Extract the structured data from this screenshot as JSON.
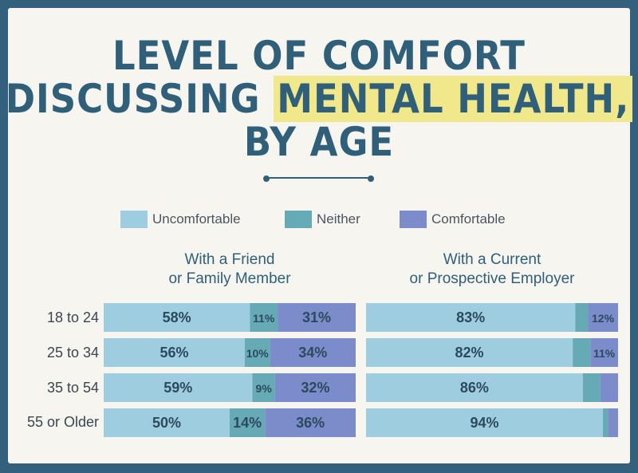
{
  "title": {
    "line1": "LEVEL OF COMFORT",
    "line2_pre": "DISCUSSING ",
    "line2_highlight": "MENTAL HEALTH,",
    "line3": "BY AGE"
  },
  "colors": {
    "background": "#33617d",
    "card": "#f6f5f0",
    "title": "#2f5f79",
    "highlight": "#f0e88a",
    "uncomfortable": "#9fcde0",
    "neither": "#66aab6",
    "comfortable": "#7c8bca"
  },
  "chart_data": {
    "type": "bar",
    "orientation": "horizontal",
    "stacked": true,
    "unit": "%",
    "categories": [
      "18 to 24",
      "25 to 34",
      "35 to 54",
      "55 or Older"
    ],
    "legend": [
      "Uncomfortable",
      "Neither",
      "Comfortable"
    ],
    "legend_placement": "top",
    "panels": [
      {
        "title_line1": "With a Friend",
        "title_line2": "or Family Member",
        "series": [
          {
            "name": "Uncomfortable",
            "values": [
              58,
              56,
              59,
              50
            ],
            "labels": [
              "58%",
              "56%",
              "59%",
              "50%"
            ]
          },
          {
            "name": "Neither",
            "values": [
              11,
              10,
              9,
              14
            ],
            "labels": [
              "11%",
              "10%",
              "9%",
              "14%"
            ]
          },
          {
            "name": "Comfortable",
            "values": [
              31,
              34,
              32,
              36
            ],
            "labels": [
              "31%",
              "34%",
              "32%",
              "36%"
            ]
          }
        ]
      },
      {
        "title_line1": "With a Current",
        "title_line2": "or Prospective Employer",
        "series": [
          {
            "name": "Uncomfortable",
            "values": [
              83,
              82,
              86,
              94
            ],
            "labels": [
              "83%",
              "82%",
              "86%",
              "94%"
            ]
          },
          {
            "name": "Neither",
            "values": [
              5,
              7,
              7,
              2
            ],
            "labels": [
              "",
              "",
              "",
              ""
            ]
          },
          {
            "name": "Comfortable",
            "values": [
              12,
              11,
              7,
              4
            ],
            "labels": [
              "12%",
              "11%",
              "",
              ""
            ]
          }
        ]
      }
    ]
  }
}
